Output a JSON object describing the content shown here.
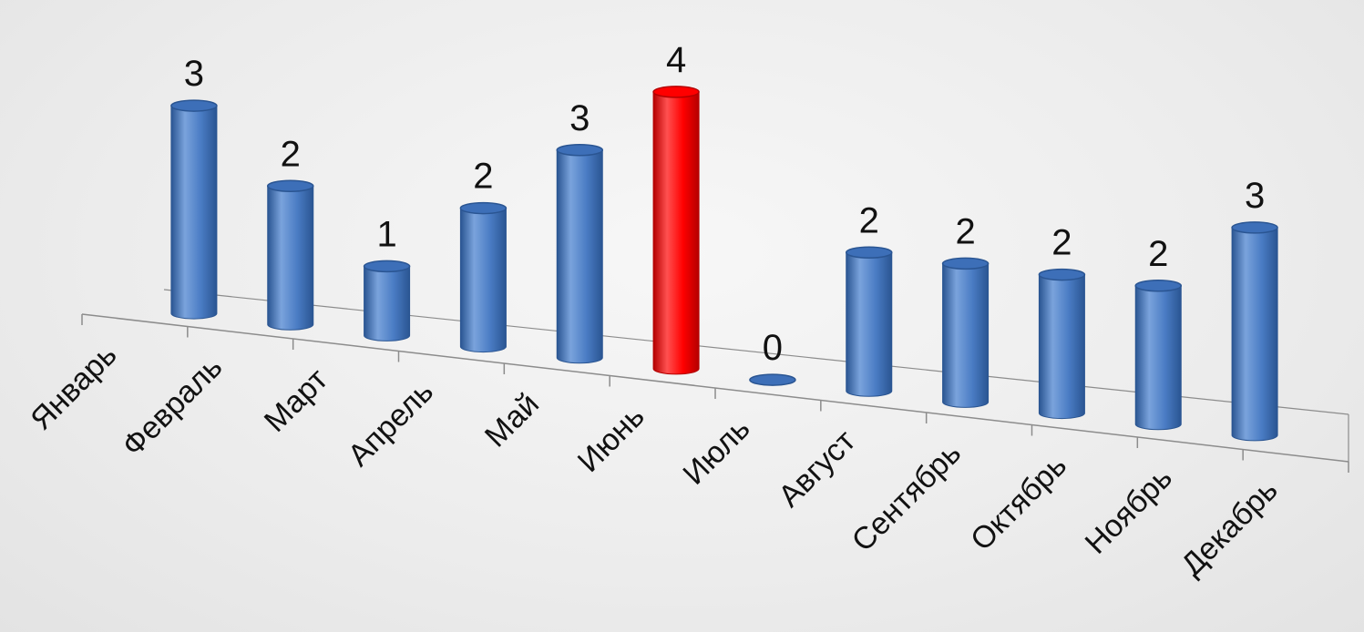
{
  "chart_data": {
    "type": "bar",
    "style": "3d-cylinder",
    "categories": [
      "Январь",
      "Февраль",
      "Март",
      "Апрель",
      "Май",
      "Июнь",
      "Июль",
      "Август",
      "Сентябрь",
      "Октябрь",
      "Ноябрь",
      "Декабрь"
    ],
    "values": [
      3,
      2,
      1,
      2,
      3,
      4,
      0,
      2,
      2,
      2,
      2,
      3
    ],
    "highlight_index": 5,
    "title": "",
    "xlabel": "",
    "ylabel": "",
    "ylim": [
      0,
      4
    ],
    "grid": false,
    "legend": "none",
    "data_labels": true,
    "colors": {
      "bar": "#4a7cc4",
      "bar_dark": "#2a5592",
      "bar_light": "#7aa3dc",
      "highlight": "#ff0000",
      "highlight_dark": "#b40000",
      "highlight_light": "#ff5050",
      "axis": "#8c8c8c"
    }
  }
}
